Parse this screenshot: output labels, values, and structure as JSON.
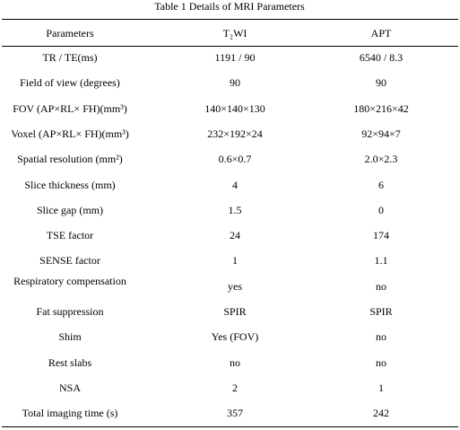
{
  "title": "Table 1 Details of MRI Parameters",
  "table": {
    "header": [
      "Parameters",
      "T₂WI",
      "APT"
    ],
    "rows": [
      [
        "TR / TE(ms)",
        "1191 / 90",
        "6540 / 8.3"
      ],
      [
        "Field of view (degrees)",
        "90",
        "90"
      ],
      [
        "FOV (AP×RL× FH)(mm³)",
        "140×140×130",
        "180×216×42"
      ],
      [
        "Voxel (AP×RL× FH)(mm³)",
        "232×192×24",
        "92×94×7"
      ],
      [
        "Spatial resolution (mm²)",
        "0.6×0.7",
        "2.0×2.3"
      ],
      [
        "Slice thickness (mm)",
        "4",
        "6"
      ],
      [
        "Slice gap (mm)",
        "1.5",
        "0"
      ],
      [
        "TSE factor",
        "24",
        "174"
      ],
      [
        "SENSE factor",
        "1",
        "1.1"
      ],
      [
        "Respiratory compensation",
        "yes",
        "no"
      ],
      [
        "Fat suppression",
        "SPIR",
        "SPIR"
      ],
      [
        "Shim",
        "Yes (FOV)",
        "no"
      ],
      [
        "Rest slabs",
        "no",
        "no"
      ],
      [
        "NSA",
        "2",
        "1"
      ],
      [
        "Total imaging time (s)",
        "357",
        "242"
      ]
    ]
  }
}
